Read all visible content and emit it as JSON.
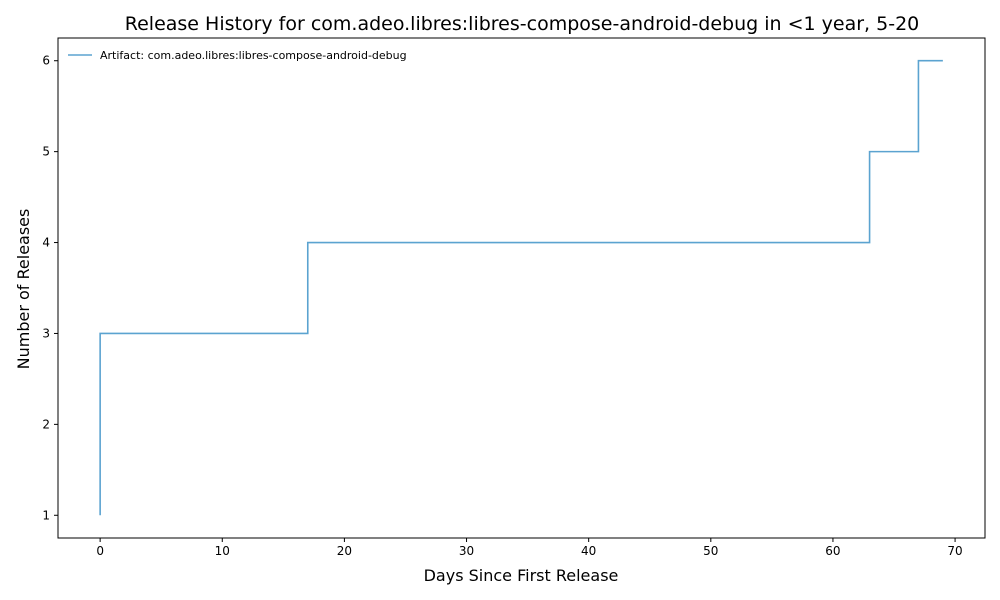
{
  "chart_data": {
    "type": "line",
    "step": "post",
    "title": "Release History for com.adeo.libres:libres-compose-android-debug in <1 year, 5-20",
    "xlabel": "Days Since First Release",
    "ylabel": "Number of Releases",
    "xlim": [
      -3.45,
      72.45
    ],
    "ylim": [
      0.75,
      6.25
    ],
    "xticks": [
      0,
      10,
      20,
      30,
      40,
      50,
      60,
      70
    ],
    "yticks": [
      1,
      2,
      3,
      4,
      5,
      6
    ],
    "grid": false,
    "legend_position": "upper-left",
    "series": [
      {
        "name": "Artifact: com.adeo.libres:libres-compose-android-debug",
        "color": "#5ba3d0",
        "x": [
          0,
          0,
          17,
          63,
          67,
          69
        ],
        "y": [
          1,
          3,
          4,
          5,
          6,
          6
        ]
      }
    ]
  }
}
